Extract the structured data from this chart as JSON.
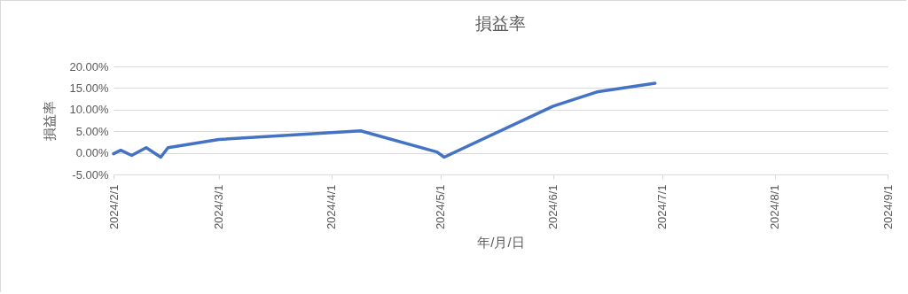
{
  "chart_data": {
    "type": "line",
    "title": "損益率",
    "xlabel": "年/月/日",
    "ylabel": "損益率",
    "x": [
      "2024-02-01",
      "2024-02-03",
      "2024-02-06",
      "2024-02-10",
      "2024-02-14",
      "2024-02-16",
      "2024-03-01",
      "2024-04-09",
      "2024-04-30",
      "2024-05-02",
      "2024-06-01",
      "2024-06-13",
      "2024-06-29"
    ],
    "series": [
      {
        "color": "#4472c4",
        "values": [
          -0.2,
          0.6,
          -0.6,
          1.2,
          -1.0,
          1.2,
          3.1,
          5.1,
          0.2,
          -1.0,
          10.8,
          14.1,
          16.1
        ]
      }
    ],
    "xlim": [
      "2024-02-01",
      "2024-09-01"
    ],
    "xticks": [
      {
        "value": "2024-02-01",
        "label": "2024/2/1"
      },
      {
        "value": "2024-03-01",
        "label": "2024/3/1"
      },
      {
        "value": "2024-04-01",
        "label": "2024/4/1"
      },
      {
        "value": "2024-05-01",
        "label": "2024/5/1"
      },
      {
        "value": "2024-06-01",
        "label": "2024/6/1"
      },
      {
        "value": "2024-07-01",
        "label": "2024/7/1"
      },
      {
        "value": "2024-08-01",
        "label": "2024/8/1"
      },
      {
        "value": "2024-09-01",
        "label": "2024/9/1"
      }
    ],
    "ylim": [
      -5,
      20
    ],
    "yticks": [
      {
        "value": -5,
        "label": "-5.00%"
      },
      {
        "value": 0,
        "label": "0.00%"
      },
      {
        "value": 5,
        "label": "5.00%"
      },
      {
        "value": 10,
        "label": "10.00%"
      },
      {
        "value": 15,
        "label": "15.00%"
      },
      {
        "value": 20,
        "label": "20.00%"
      }
    ],
    "grid": "y",
    "marker": "none",
    "line_style": "solid"
  }
}
